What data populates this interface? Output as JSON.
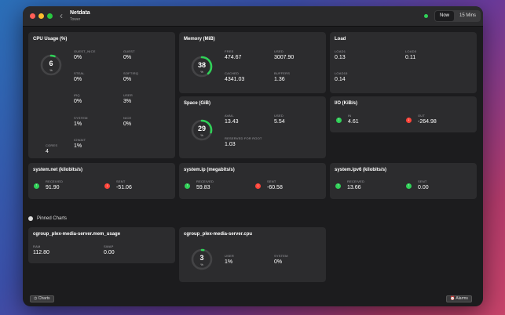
{
  "window": {
    "title": "Netdata",
    "subtitle": "Tower"
  },
  "toolbar": {
    "now_label": "Now",
    "range_label": "15 Mins"
  },
  "cpu": {
    "title": "CPU Usage (%)",
    "gauge_value": "6",
    "gauge_unit": "%",
    "gauge_fraction": 0.06,
    "cores_label": "CORES",
    "cores_value": "4",
    "fields": [
      {
        "label": "GUEST_NICE",
        "value": "0%"
      },
      {
        "label": "GUEST",
        "value": "0%"
      },
      {
        "label": "STEAL",
        "value": "0%"
      },
      {
        "label": "SOFTIRQ",
        "value": "0%"
      },
      {
        "label": "IRQ",
        "value": "0%"
      },
      {
        "label": "USER",
        "value": "3%"
      },
      {
        "label": "SYSTEM",
        "value": "1%"
      },
      {
        "label": "NICE",
        "value": "0%"
      },
      {
        "label": "IOWAIT",
        "value": "1%"
      }
    ]
  },
  "memory": {
    "title": "Memory (MiB)",
    "gauge_value": "38",
    "gauge_unit": "%",
    "gauge_fraction": 0.38,
    "fields": [
      {
        "label": "FREE",
        "value": "474.67"
      },
      {
        "label": "USED",
        "value": "3007.90"
      },
      {
        "label": "CACHED",
        "value": "4341.03"
      },
      {
        "label": "BUFFERS",
        "value": "1.36"
      }
    ]
  },
  "load": {
    "title": "Load",
    "fields": [
      {
        "label": "LOAD1",
        "value": "0.13"
      },
      {
        "label": "LOAD5",
        "value": "0.11"
      },
      {
        "label": "LOAD15",
        "value": "0.14"
      }
    ]
  },
  "space": {
    "title": "Space (GiB)",
    "gauge_value": "29",
    "gauge_unit": "%",
    "gauge_fraction": 0.29,
    "fields": [
      {
        "label": "AVAIL",
        "value": "13.43"
      },
      {
        "label": "USED",
        "value": "5.54"
      },
      {
        "label": "RESERVED FOR ROOT",
        "value": "1.03"
      }
    ]
  },
  "io": {
    "title": "I/O (KiB/s)",
    "in_label": "IN",
    "in_value": "4.61",
    "out_label": "OUT",
    "out_value": "-264.98"
  },
  "net": {
    "title": "system.net (kilobits/s)",
    "received_label": "RECEIVED",
    "received_value": "91.90",
    "sent_label": "SENT",
    "sent_value": "-51.06"
  },
  "ip": {
    "title": "system.ip (megabits/s)",
    "received_label": "RECEIVED",
    "received_value": "59.83",
    "sent_label": "SENT",
    "sent_value": "-60.58"
  },
  "ipv6": {
    "title": "system.ipv6 (kilobits/s)",
    "received_label": "RECEIVED",
    "received_value": "13.66",
    "sent_label": "SENT",
    "sent_value": "0.00"
  },
  "pinned": {
    "label": "Pinned Charts"
  },
  "plex_mem": {
    "title": "cgroup_plex-media-server.mem_usage",
    "fields": [
      {
        "label": "RAM",
        "value": "112.80"
      },
      {
        "label": "SWAP",
        "value": "0.00"
      }
    ]
  },
  "plex_cpu": {
    "title": "cgroup_plex-media-server.cpu",
    "gauge_value": "3",
    "gauge_unit": "%",
    "gauge_fraction": 0.03,
    "fields": [
      {
        "label": "USER",
        "value": "1%"
      },
      {
        "label": "SYSTEM",
        "value": "0%"
      }
    ]
  },
  "bottom": {
    "charts_label": "Charts",
    "alarms_label": "Alarms"
  },
  "colors": {
    "gauge_green": "#30d158",
    "gauge_track": "#444446",
    "up": "#30d158",
    "down": "#ff453a"
  },
  "icons": {
    "up": "arrow-up-icon",
    "down": "arrow-down-icon"
  }
}
